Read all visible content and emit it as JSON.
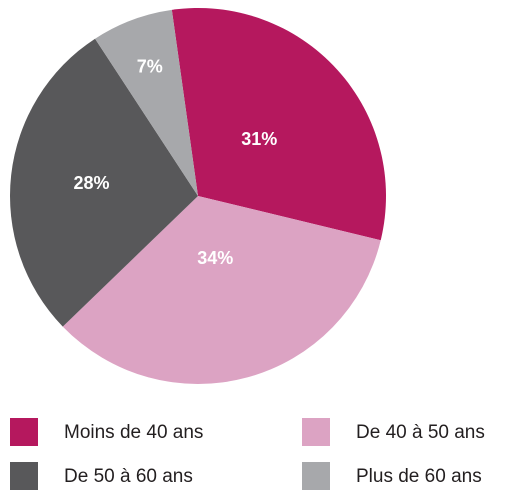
{
  "chart_data": {
    "type": "pie",
    "categories": [
      "Moins de 40 ans",
      "De 40 à 50 ans",
      "De 50 à 60 ans",
      "Plus de 60 ans"
    ],
    "values": [
      31,
      34,
      28,
      7
    ],
    "value_labels": [
      "31%",
      "34%",
      "28%",
      "7%"
    ],
    "colors": [
      "#b5185e",
      "#dca3c3",
      "#58585a",
      "#a7a8ab"
    ]
  }
}
